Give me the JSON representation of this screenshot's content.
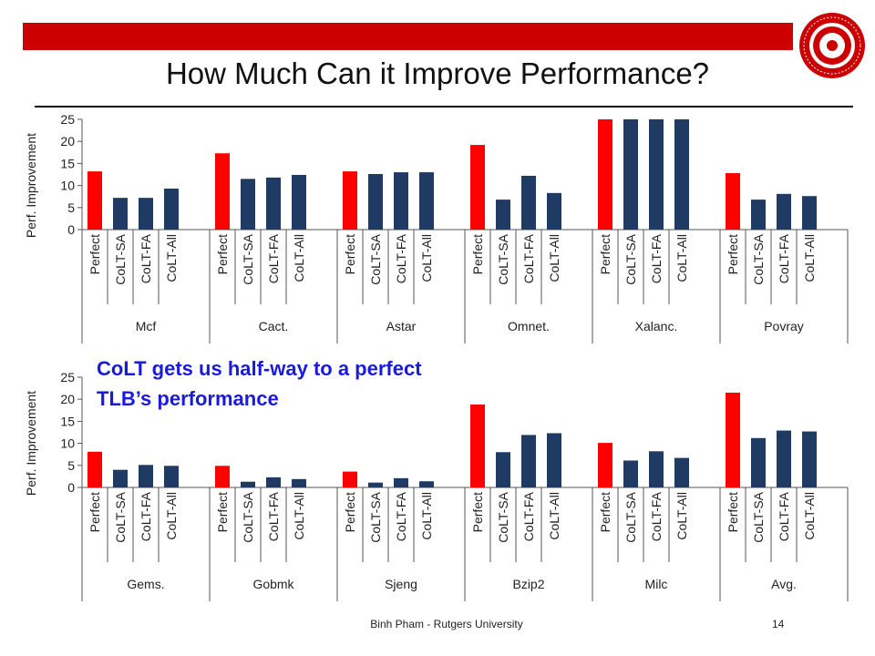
{
  "slide": {
    "title": "How Much Can it Improve Performance?",
    "annotation": [
      "CoLT gets us half-way to a perfect",
      "TLB’s performance"
    ],
    "footer": "Binh Pham - Rutgers University",
    "page_number": "14",
    "seal_label": "RUTGERS THE STATE UNIVERSITY OF NEW JERSEY"
  },
  "colors": {
    "bar_red": "#ff0000",
    "bar_navy": "#1f3a63",
    "accent_bar": "#cc0000",
    "annotation": "#1a1adf"
  },
  "chart_data": [
    {
      "type": "bar",
      "ylabel": "Perf. Improvement",
      "ylim": [
        0,
        25
      ],
      "yticks": [
        0,
        5,
        10,
        15,
        20,
        25
      ],
      "grid": false,
      "categories": [
        "Mcf",
        "Cact.",
        "Astar",
        "Omnet.",
        "Xalanc.",
        "Povray"
      ],
      "series": [
        {
          "name": "Perfect",
          "values": [
            13.2,
            17.3,
            13.2,
            19.2,
            25,
            12.8
          ]
        },
        {
          "name": "CoLT-SA",
          "values": [
            7.2,
            11.5,
            12.6,
            6.8,
            25,
            6.8
          ]
        },
        {
          "name": "CoLT-FA",
          "values": [
            7.2,
            11.8,
            13.0,
            12.2,
            25,
            8.1
          ]
        },
        {
          "name": "CoLT-All",
          "values": [
            9.3,
            12.4,
            13.0,
            8.3,
            25,
            7.6
          ]
        }
      ]
    },
    {
      "type": "bar",
      "ylabel": "Perf. Improvement",
      "ylim": [
        0,
        25
      ],
      "yticks": [
        0,
        5,
        10,
        15,
        20,
        25
      ],
      "grid": false,
      "categories": [
        "Gems.",
        "Gobmk",
        "Sjeng",
        "Bzip2",
        "Milc",
        "Avg."
      ],
      "series": [
        {
          "name": "Perfect",
          "values": [
            8.1,
            4.9,
            3.6,
            18.8,
            10.1,
            21.5
          ]
        },
        {
          "name": "CoLT-SA",
          "values": [
            4.0,
            1.3,
            1.1,
            8.0,
            6.1,
            11.2
          ]
        },
        {
          "name": "CoLT-FA",
          "values": [
            5.1,
            2.3,
            2.1,
            11.9,
            8.2,
            12.9
          ]
        },
        {
          "name": "CoLT-All",
          "values": [
            4.9,
            1.9,
            1.4,
            12.3,
            6.7,
            12.7
          ]
        }
      ]
    }
  ]
}
